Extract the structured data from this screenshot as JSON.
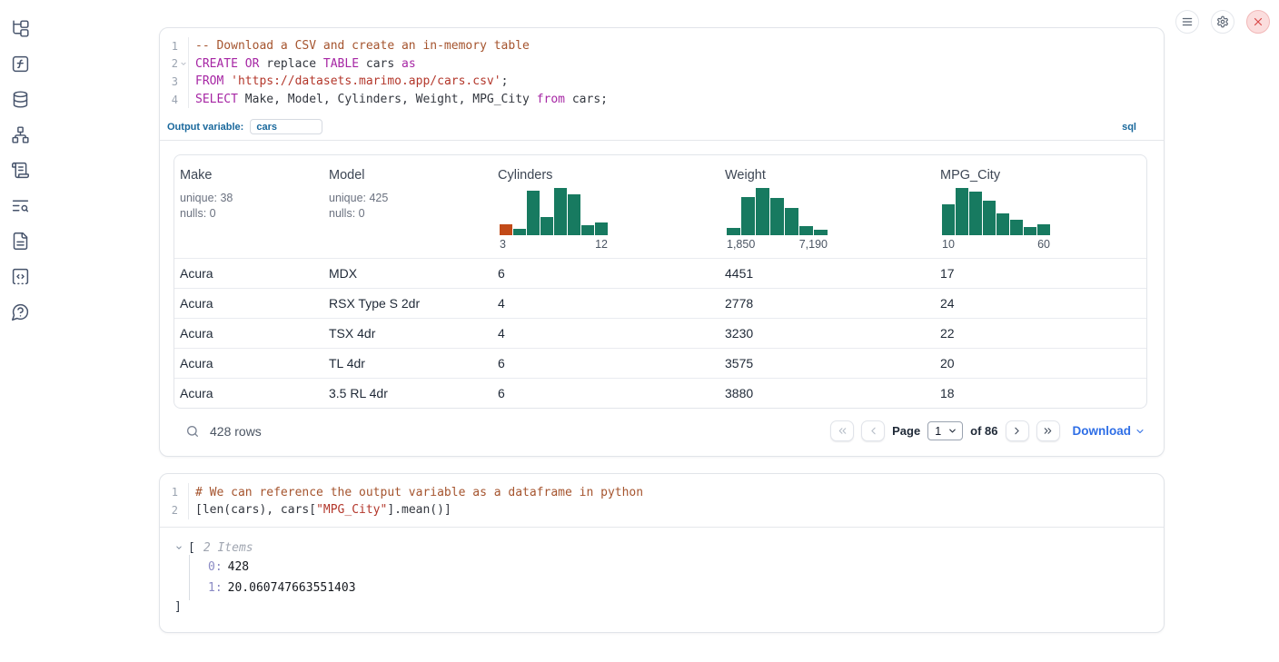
{
  "colors": {
    "keyword": "#a626a4",
    "comment": "#a5542e",
    "string": "#b3372b",
    "accent_blue": "#19689c",
    "link_blue": "#2e6ee6",
    "hist_green": "#177a60",
    "hist_orange": "#c24a18"
  },
  "sidebar": {
    "icons": [
      "file-tree",
      "function-square",
      "database",
      "dependency-graph",
      "scroll-scratchpad",
      "text-search",
      "file-text",
      "snippets-code",
      "help-bubble"
    ]
  },
  "window_controls": {
    "menu": "menu",
    "settings": "settings",
    "close": "close"
  },
  "sql_cell": {
    "lines": [
      {
        "num": "1",
        "tokens": [
          {
            "text": "-- Download a CSV and create an in-memory table",
            "type": "comment"
          }
        ]
      },
      {
        "num": "2",
        "fold": true,
        "tokens": [
          {
            "text": "CREATE",
            "type": "keyword"
          },
          {
            "text": " ",
            "type": "plain"
          },
          {
            "text": "OR",
            "type": "keyword"
          },
          {
            "text": " replace ",
            "type": "plain"
          },
          {
            "text": "TABLE",
            "type": "keyword"
          },
          {
            "text": " cars ",
            "type": "plain"
          },
          {
            "text": "as",
            "type": "keyword"
          }
        ]
      },
      {
        "num": "3",
        "tokens": [
          {
            "text": "FROM",
            "type": "keyword"
          },
          {
            "text": " ",
            "type": "plain"
          },
          {
            "text": "'https://datasets.marimo.app/cars.csv'",
            "type": "string"
          },
          {
            "text": ";",
            "type": "plain"
          }
        ]
      },
      {
        "num": "4",
        "tokens": [
          {
            "text": "SELECT",
            "type": "keyword"
          },
          {
            "text": " Make, Model, Cylinders, Weight, MPG_City ",
            "type": "plain"
          },
          {
            "text": "from",
            "type": "keyword"
          },
          {
            "text": " cars;",
            "type": "plain"
          }
        ]
      }
    ],
    "footer": {
      "label": "Output variable:",
      "value": "cars",
      "language_badge": "sql"
    }
  },
  "table": {
    "columns": [
      {
        "label": "Make",
        "unique": "unique: 38",
        "nulls": "nulls: 0"
      },
      {
        "label": "Model",
        "unique": "unique: 425",
        "nulls": "nulls: 0"
      },
      {
        "label": "Cylinders",
        "histogram": {
          "bars": [
            0.24,
            0.14,
            0.95,
            0.39,
            1.0,
            0.87,
            0.22,
            0.27
          ],
          "highlight_index": 0,
          "x_min": "3",
          "x_max": "12"
        }
      },
      {
        "label": "Weight",
        "histogram": {
          "bars": [
            0.15,
            0.8,
            1.0,
            0.78,
            0.57,
            0.2,
            0.11
          ],
          "highlight_index": -1,
          "x_min": "1,850",
          "x_max": "7,190"
        }
      },
      {
        "label": "MPG_City",
        "histogram": {
          "bars": [
            0.65,
            1.0,
            0.92,
            0.73,
            0.47,
            0.32,
            0.17,
            0.24
          ],
          "highlight_index": -1,
          "x_min": "10",
          "x_max": "60"
        }
      }
    ],
    "rows": [
      [
        "Acura",
        "MDX",
        "6",
        "4451",
        "17"
      ],
      [
        "Acura",
        "RSX Type S 2dr",
        "4",
        "2778",
        "24"
      ],
      [
        "Acura",
        "TSX 4dr",
        "4",
        "3230",
        "22"
      ],
      [
        "Acura",
        "TL 4dr",
        "6",
        "3575",
        "20"
      ],
      [
        "Acura",
        "3.5 RL 4dr",
        "6",
        "3880",
        "18"
      ]
    ],
    "footer": {
      "row_count": "428 rows",
      "page_label": "Page",
      "page_value": "1",
      "page_total": "of 86",
      "download_label": "Download"
    }
  },
  "python_cell": {
    "lines": [
      {
        "num": "1",
        "tokens": [
          {
            "text": "# We can reference the output variable as a dataframe in python",
            "type": "comment"
          }
        ]
      },
      {
        "num": "2",
        "tokens": [
          {
            "text": "[len(cars), cars[",
            "type": "plain"
          },
          {
            "text": "\"MPG_City\"",
            "type": "string"
          },
          {
            "text": "].mean()]",
            "type": "plain"
          }
        ]
      }
    ],
    "output": {
      "bracket_open": "[",
      "items_label": "2 Items",
      "entries": [
        {
          "key": "0:",
          "value": "428"
        },
        {
          "key": "1:",
          "value": "20.060747663551403"
        }
      ],
      "bracket_close": "]"
    }
  }
}
